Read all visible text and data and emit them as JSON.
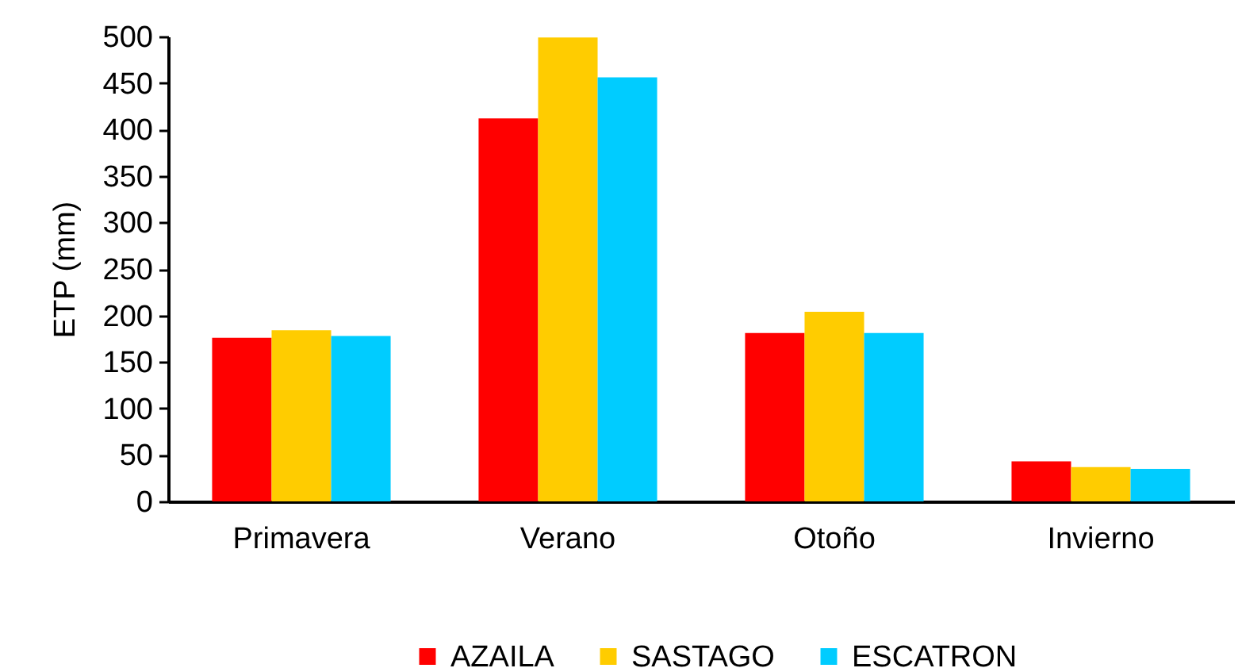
{
  "chart_data": {
    "type": "bar",
    "ylabel": "ETP (mm)",
    "categories": [
      "Primavera",
      "Verano",
      "Otoño",
      "Invierno"
    ],
    "series": [
      {
        "name": "AZAILA",
        "color": "#ff0000",
        "values": [
          176,
          412,
          181,
          43
        ]
      },
      {
        "name": "SASTAGO",
        "color": "#ffcc00",
        "values": [
          184,
          499,
          204,
          37
        ]
      },
      {
        "name": "ESCATRON",
        "color": "#00ccff",
        "values": [
          178,
          456,
          181,
          35
        ]
      }
    ],
    "ylim": [
      0,
      500
    ],
    "yticks": [
      0,
      50,
      100,
      150,
      200,
      250,
      300,
      350,
      400,
      450,
      500
    ],
    "legend": "bottom"
  }
}
